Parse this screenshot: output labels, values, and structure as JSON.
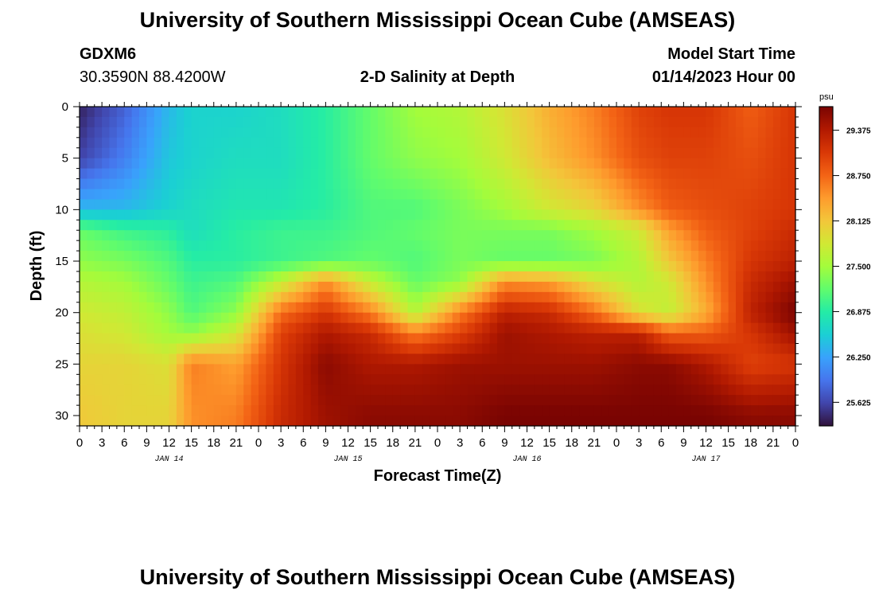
{
  "header": {
    "title": "University of Southern Mississippi Ocean Cube (AMSEAS)",
    "station_id": "GDXM6",
    "station_coords": "30.3590N  88.4200W",
    "plot_title": "2-D Salinity at Depth",
    "model_start_label": "Model Start Time",
    "model_start_value": "01/14/2023 Hour 00"
  },
  "footer": {
    "title": "University of Southern Mississippi Ocean Cube (AMSEAS)"
  },
  "chart_data": {
    "type": "heatmap",
    "title": "2-D Salinity at Depth",
    "xlabel": "Forecast Time(Z)",
    "ylabel": "Depth (ft)",
    "x_hours_range": [
      0,
      96
    ],
    "x_tick_step_hours": 3,
    "x_tick_labels": [
      "0",
      "3",
      "6",
      "9",
      "12",
      "15",
      "18",
      "21",
      "0",
      "3",
      "6",
      "9",
      "12",
      "15",
      "18",
      "21",
      "0",
      "3",
      "6",
      "9",
      "12",
      "15",
      "18",
      "21",
      "0",
      "3",
      "6",
      "9",
      "12",
      "15",
      "18",
      "21",
      "0"
    ],
    "date_labels": [
      {
        "hour": 12,
        "label": "JAN 14"
      },
      {
        "hour": 36,
        "label": "JAN 15"
      },
      {
        "hour": 60,
        "label": "JAN 16"
      },
      {
        "hour": 84,
        "label": "JAN 17"
      }
    ],
    "y_range_ft": [
      0,
      31
    ],
    "y_ticks": [
      0,
      5,
      10,
      15,
      20,
      25,
      30
    ],
    "colorbar": {
      "unit": "psu",
      "range": [
        25.3,
        29.7
      ],
      "ticks": [
        "29.375",
        "28.750",
        "28.125",
        "27.500",
        "26.875",
        "26.250",
        "25.625"
      ],
      "colors": [
        "#30123b",
        "#4145ab",
        "#4675ed",
        "#39a2fc",
        "#1bcfd4",
        "#24eca6",
        "#61fc6c",
        "#a4fc3b",
        "#d1e834",
        "#f3c63a",
        "#fe9b2d",
        "#f36315",
        "#d93806",
        "#b11901",
        "#7a0402"
      ]
    },
    "sample_columns_hours": [
      0,
      6,
      12,
      15,
      21,
      27,
      33,
      39,
      45,
      51,
      57,
      63,
      69,
      75,
      79,
      84,
      90,
      96
    ],
    "sample_rows_depth_ft": [
      0,
      5,
      10,
      12,
      15,
      17,
      20,
      22,
      25,
      30
    ],
    "values": [
      [
        25.4,
        25.8,
        26.4,
        26.6,
        26.6,
        26.7,
        26.9,
        27.2,
        27.5,
        27.6,
        27.9,
        28.3,
        28.6,
        29.0,
        29.1,
        29.1,
        28.8,
        29.1
      ],
      [
        25.6,
        26.0,
        26.5,
        26.6,
        26.7,
        26.7,
        26.9,
        27.2,
        27.4,
        27.5,
        27.8,
        28.2,
        28.5,
        28.9,
        29.0,
        29.0,
        28.9,
        29.1
      ],
      [
        26.4,
        26.4,
        26.6,
        26.7,
        26.8,
        26.8,
        26.9,
        27.1,
        27.1,
        27.3,
        27.5,
        27.8,
        28.0,
        28.5,
        28.8,
        28.9,
        29.0,
        29.1
      ],
      [
        27.2,
        27.0,
        26.9,
        26.7,
        26.9,
        27.0,
        27.0,
        27.1,
        27.2,
        27.3,
        27.3,
        27.3,
        27.5,
        27.8,
        28.4,
        28.8,
        29.0,
        29.2
      ],
      [
        27.4,
        27.3,
        27.1,
        26.9,
        26.9,
        27.0,
        27.1,
        27.2,
        27.1,
        27.3,
        27.2,
        27.2,
        27.3,
        27.6,
        28.1,
        28.6,
        29.1,
        29.3
      ],
      [
        27.6,
        27.5,
        27.2,
        27.0,
        27.1,
        27.7,
        28.5,
        27.7,
        27.2,
        27.4,
        28.5,
        28.4,
        27.9,
        27.6,
        27.8,
        28.5,
        29.2,
        29.5
      ],
      [
        27.8,
        27.7,
        27.4,
        27.1,
        27.4,
        28.7,
        29.1,
        28.6,
        27.6,
        28.6,
        29.3,
        29.2,
        28.7,
        27.9,
        27.7,
        28.3,
        29.3,
        29.7
      ],
      [
        27.9,
        27.8,
        27.5,
        27.4,
        27.8,
        29.0,
        29.4,
        29.2,
        28.6,
        29.0,
        29.5,
        29.4,
        29.3,
        29.3,
        28.8,
        28.8,
        29.1,
        29.5
      ],
      [
        28.0,
        28.0,
        27.9,
        28.6,
        28.4,
        29.1,
        29.6,
        29.4,
        29.4,
        29.5,
        29.5,
        29.5,
        29.5,
        29.6,
        29.6,
        29.4,
        29.0,
        29.1
      ],
      [
        28.1,
        28.0,
        28.0,
        28.5,
        28.6,
        29.2,
        29.5,
        29.6,
        29.6,
        29.6,
        29.7,
        29.7,
        29.7,
        29.7,
        29.7,
        29.7,
        29.6,
        29.6
      ]
    ]
  }
}
